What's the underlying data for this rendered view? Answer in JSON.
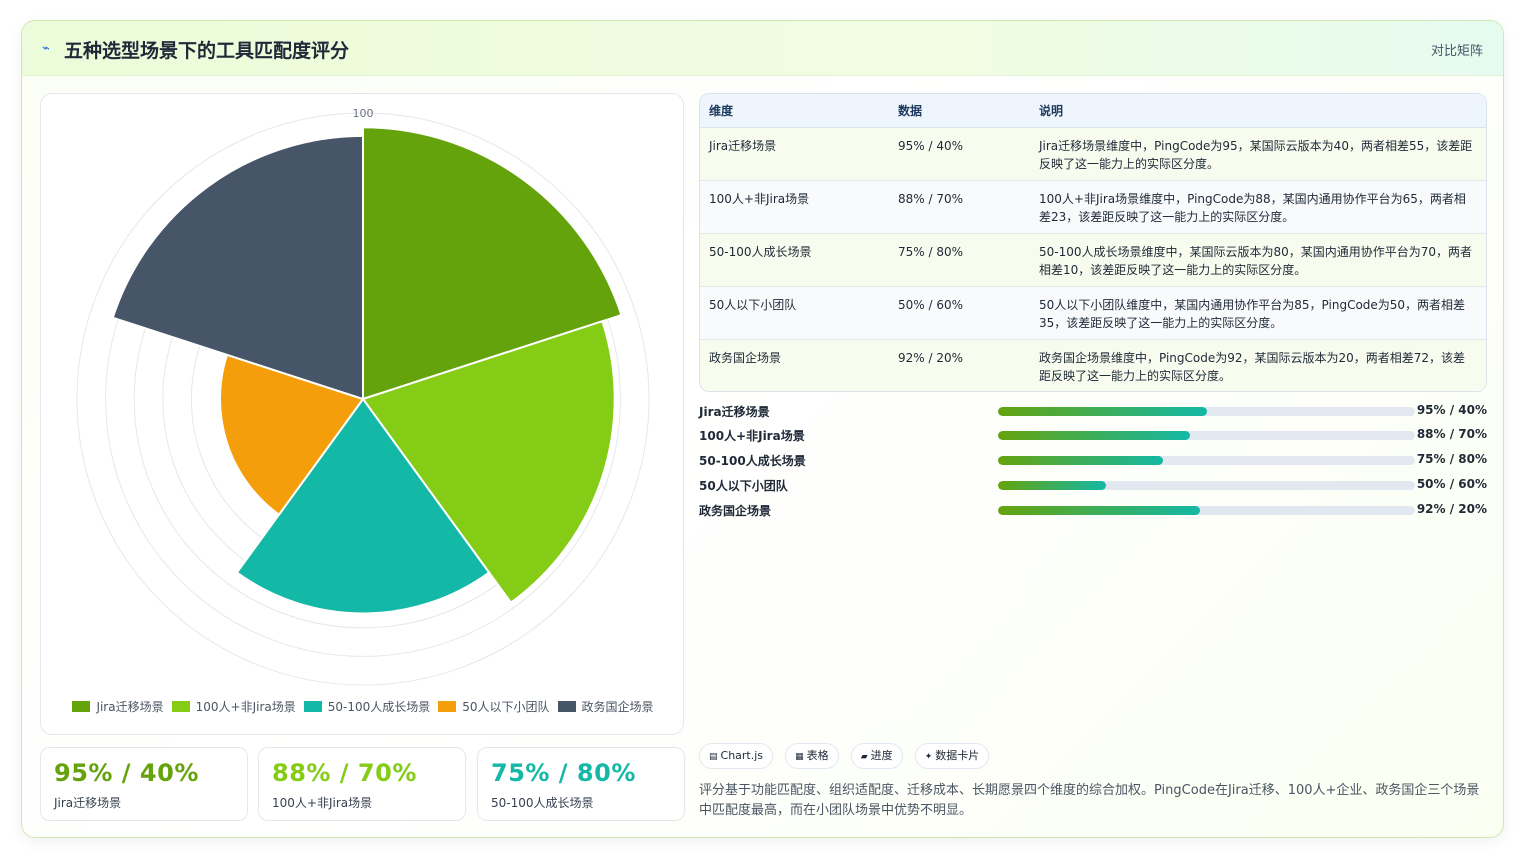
{
  "header": {
    "logo_icon": "chart-line-icon",
    "title": "五种选型场景下的工具匹配度评分",
    "link_label": "对比矩阵"
  },
  "chart_data": {
    "type": "polarArea",
    "scale_max": 100,
    "tick_label": "100",
    "categories": [
      "Jira迁移场景",
      "100人+非Jira场景",
      "50-100人成长场景",
      "50人以下小团队",
      "政务国企场景"
    ],
    "values": [
      95,
      88,
      75,
      50,
      92
    ],
    "colors": [
      "#65a30d",
      "#84cc16",
      "#14b8a6",
      "#f59e0b",
      "#475569"
    ],
    "legend_position": "bottom"
  },
  "stats": [
    {
      "value": "95% / 40%",
      "label": "Jira迁移场景",
      "color": "#65a30d"
    },
    {
      "value": "88% / 70%",
      "label": "100人+非Jira场景",
      "color": "#84cc16"
    },
    {
      "value": "75% / 80%",
      "label": "50-100人成长场景",
      "color": "#14b8a6"
    }
  ],
  "table": {
    "headers": [
      "维度",
      "数据",
      "说明"
    ],
    "rows": [
      {
        "dimension": "Jira迁移场景",
        "data": "95% / 40%",
        "desc": "Jira迁移场景维度中，PingCode为95，某国际云版本为40，两者相差55，该差距反映了这一能力上的实际区分度。"
      },
      {
        "dimension": "100人+非Jira场景",
        "data": "88% / 70%",
        "desc": "100人+非Jira场景维度中，PingCode为88，某国内通用协作平台为65，两者相差23，该差距反映了这一能力上的实际区分度。"
      },
      {
        "dimension": "50-100人成长场景",
        "data": "75% / 80%",
        "desc": "50-100人成长场景维度中，某国际云版本为80，某国内通用协作平台为70，两者相差10，该差距反映了这一能力上的实际区分度。"
      },
      {
        "dimension": "50人以下小团队",
        "data": "50% / 60%",
        "desc": "50人以下小团队维度中，某国内通用协作平台为85，PingCode为50，两者相差35，该差距反映了这一能力上的实际区分度。"
      },
      {
        "dimension": "政务国企场景",
        "data": "92% / 20%",
        "desc": "政务国企场景维度中，PingCode为92，某国际云版本为20，两者相差72，该差距反映了这一能力上的实际区分度。"
      }
    ]
  },
  "progress": [
    {
      "label": "Jira迁移场景",
      "value": "95% / 40%",
      "fill": 0.5
    },
    {
      "label": "100人+非Jira场景",
      "value": "88% / 70%",
      "fill": 0.46
    },
    {
      "label": "50-100人成长场景",
      "value": "75% / 80%",
      "fill": 0.395
    },
    {
      "label": "50人以下小团队",
      "value": "50% / 60%",
      "fill": 0.26
    },
    {
      "label": "政务国企场景",
      "value": "92% / 20%",
      "fill": 0.485
    }
  ],
  "tags": [
    {
      "icon": "chart-icon",
      "glyph": "▤",
      "label": "Chart.js"
    },
    {
      "icon": "table-icon",
      "glyph": "▦",
      "label": "表格"
    },
    {
      "icon": "progress-icon",
      "glyph": "▰",
      "label": "进度"
    },
    {
      "icon": "card-icon",
      "glyph": "✦",
      "label": "数据卡片"
    }
  ],
  "note": "评分基于功能匹配度、组织适配度、迁移成本、长期愿景四个维度的综合加权。PingCode在Jira迁移、100人+企业、政务国企三个场景中匹配度最高，而在小团队场景中优势不明显。"
}
